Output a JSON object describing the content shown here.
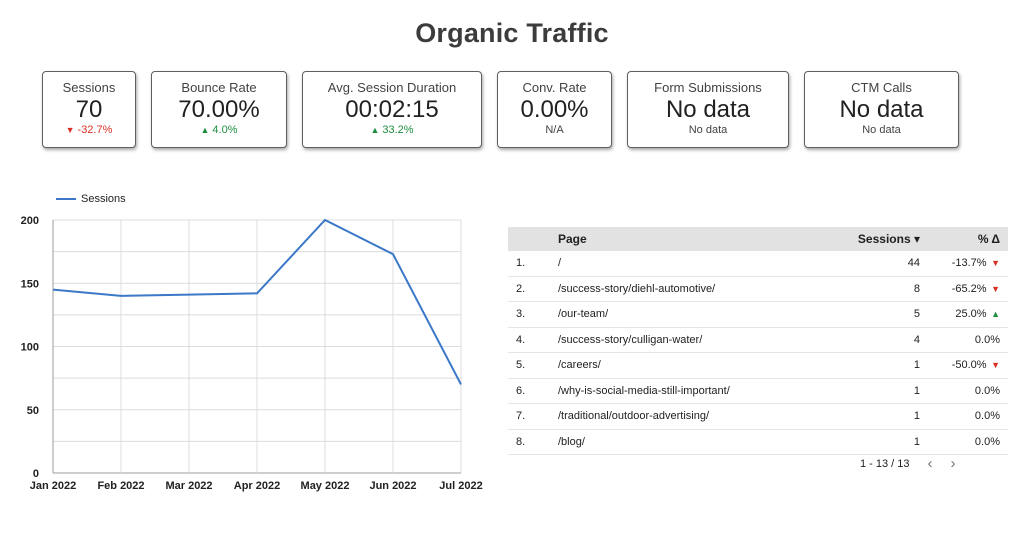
{
  "title": "Organic Traffic",
  "scorecards": [
    {
      "label": "Sessions",
      "value": "70",
      "change": "-32.7%",
      "dir": "down"
    },
    {
      "label": "Bounce Rate",
      "value": "70.00%",
      "change": "4.0%",
      "dir": "up"
    },
    {
      "label": "Avg. Session Duration",
      "value": "00:02:15",
      "change": "33.2%",
      "dir": "up"
    },
    {
      "label": "Conv. Rate",
      "value": "0.00%",
      "change": "N/A",
      "dir": "na"
    },
    {
      "label": "Form Submissions",
      "value": "No data",
      "change": "No data",
      "dir": "na"
    },
    {
      "label": "CTM Calls",
      "value": "No data",
      "change": "No data",
      "dir": "na"
    }
  ],
  "chart_data": {
    "type": "line",
    "x": [
      "Jan 2022",
      "Feb 2022",
      "Mar 2022",
      "Apr 2022",
      "May 2022",
      "Jun 2022",
      "Jul 2022"
    ],
    "series": [
      {
        "name": "Sessions",
        "values": [
          145,
          140,
          141,
          142,
          200,
          173,
          70
        ]
      }
    ],
    "yticks": [
      0,
      50,
      100,
      150,
      200
    ],
    "ylim": [
      0,
      200
    ],
    "grid": true,
    "legend": "top-left",
    "color": "#3b78c8"
  },
  "table": {
    "headers": {
      "page": "Page",
      "sessions": "Sessions",
      "sort": "▾",
      "pct": "% Δ"
    },
    "rows": [
      {
        "num": "1.",
        "page": "/",
        "sessions": "44",
        "pct": "-13.7%",
        "dir": "down"
      },
      {
        "num": "2.",
        "page": "/success-story/diehl-automotive/",
        "sessions": "8",
        "pct": "-65.2%",
        "dir": "down"
      },
      {
        "num": "3.",
        "page": "/our-team/",
        "sessions": "5",
        "pct": "25.0%",
        "dir": "up"
      },
      {
        "num": "4.",
        "page": "/success-story/culligan-water/",
        "sessions": "4",
        "pct": "0.0%",
        "dir": "none"
      },
      {
        "num": "5.",
        "page": "/careers/",
        "sessions": "1",
        "pct": "-50.0%",
        "dir": "down"
      },
      {
        "num": "6.",
        "page": "/why-is-social-media-still-important/",
        "sessions": "1",
        "pct": "0.0%",
        "dir": "none"
      },
      {
        "num": "7.",
        "page": "/traditional/outdoor-advertising/",
        "sessions": "1",
        "pct": "0.0%",
        "dir": "none"
      },
      {
        "num": "8.",
        "page": "/blog/",
        "sessions": "1",
        "pct": "0.0%",
        "dir": "none"
      }
    ],
    "pager": {
      "range": "1 - 13 / 13",
      "prev": "‹",
      "next": "›"
    }
  },
  "icons": {
    "down": "arrow-down-icon",
    "up": "arrow-up-icon"
  },
  "colors": {
    "down": "#d93025",
    "up": "#1e8e3e",
    "line": "#3b78c8"
  }
}
